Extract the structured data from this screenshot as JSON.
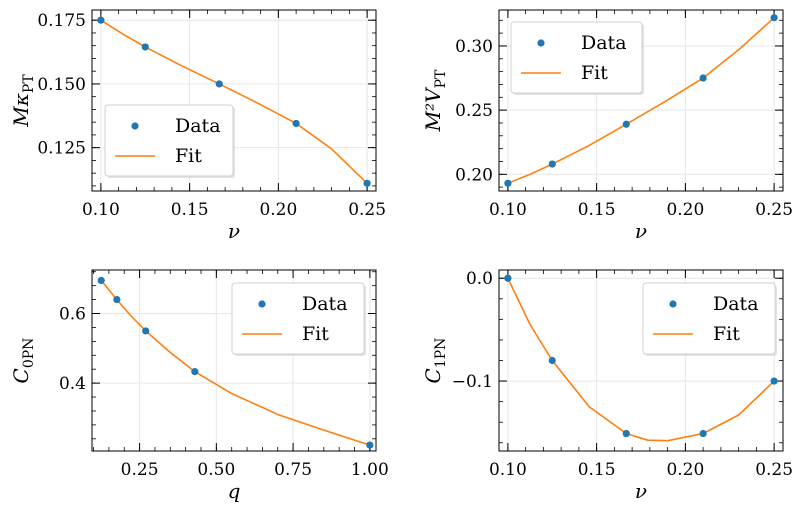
{
  "colors": {
    "data": "#1f77b4",
    "fit": "#ff7f0e",
    "grid": "#e6e6e6",
    "frame": "#000000"
  },
  "chart_data": [
    {
      "type": "scatter",
      "xlabel": "ν",
      "ylabel_main": "Mκ",
      "ylabel_sub": "PT",
      "xlim": [
        0.095,
        0.255
      ],
      "ylim": [
        0.108,
        0.179
      ],
      "xticks": [
        0.1,
        0.15,
        0.2,
        0.25
      ],
      "xtick_labels": [
        "0.10",
        "0.15",
        "0.20",
        "0.25"
      ],
      "yticks": [
        0.125,
        0.15,
        0.175
      ],
      "ytick_labels": [
        "0.125",
        "0.150",
        "0.175"
      ],
      "grid": true,
      "legend": {
        "position": "lower-left",
        "entries": [
          "Data",
          "Fit"
        ]
      },
      "series": [
        {
          "name": "Data",
          "kind": "scatter",
          "x": [
            0.1,
            0.125,
            0.1667,
            0.21,
            0.25
          ],
          "y": [
            0.175,
            0.1645,
            0.15,
            0.1345,
            0.111
          ]
        },
        {
          "name": "Fit",
          "kind": "line",
          "x": [
            0.1,
            0.1125,
            0.125,
            0.1458,
            0.1667,
            0.1883,
            0.21,
            0.23,
            0.25
          ],
          "y": [
            0.175,
            0.1695,
            0.1645,
            0.157,
            0.15,
            0.1425,
            0.1345,
            0.1245,
            0.111
          ]
        }
      ]
    },
    {
      "type": "scatter",
      "xlabel": "ν",
      "ylabel_main": "M²V",
      "ylabel_sub": "PT",
      "xlim": [
        0.095,
        0.255
      ],
      "ylim": [
        0.187,
        0.328
      ],
      "xticks": [
        0.1,
        0.15,
        0.2,
        0.25
      ],
      "xtick_labels": [
        "0.10",
        "0.15",
        "0.20",
        "0.25"
      ],
      "yticks": [
        0.2,
        0.25,
        0.3
      ],
      "ytick_labels": [
        "0.20",
        "0.25",
        "0.30"
      ],
      "grid": true,
      "legend": {
        "position": "top-left",
        "entries": [
          "Data",
          "Fit"
        ]
      },
      "series": [
        {
          "name": "Data",
          "kind": "scatter",
          "x": [
            0.1,
            0.125,
            0.1667,
            0.21,
            0.25
          ],
          "y": [
            0.193,
            0.208,
            0.239,
            0.275,
            0.322
          ]
        },
        {
          "name": "Fit",
          "kind": "line",
          "x": [
            0.1,
            0.1125,
            0.125,
            0.1458,
            0.1667,
            0.1883,
            0.21,
            0.23,
            0.25
          ],
          "y": [
            0.193,
            0.2,
            0.208,
            0.2225,
            0.239,
            0.2565,
            0.275,
            0.297,
            0.322
          ]
        }
      ]
    },
    {
      "type": "scatter",
      "xlabel": "q",
      "ylabel_main": "C",
      "ylabel_sub": "0PN",
      "xlim": [
        0.095,
        1.02
      ],
      "ylim": [
        0.205,
        0.725
      ],
      "xticks": [
        0.25,
        0.5,
        0.75,
        1.0
      ],
      "xtick_labels": [
        "0.25",
        "0.50",
        "0.75",
        "1.00"
      ],
      "yticks": [
        0.4,
        0.6
      ],
      "ytick_labels": [
        "0.4",
        "0.6"
      ],
      "grid": true,
      "legend": {
        "position": "top-right",
        "entries": [
          "Data",
          "Fit"
        ]
      },
      "series": [
        {
          "name": "Data",
          "kind": "scatter",
          "x": [
            0.125,
            0.176,
            0.27,
            0.43,
            1.0
          ],
          "y": [
            0.695,
            0.64,
            0.55,
            0.433,
            0.222
          ]
        },
        {
          "name": "Fit",
          "kind": "line",
          "x": [
            0.125,
            0.15,
            0.176,
            0.22,
            0.27,
            0.35,
            0.43,
            0.55,
            0.7,
            0.85,
            1.0
          ],
          "y": [
            0.695,
            0.668,
            0.64,
            0.595,
            0.55,
            0.488,
            0.433,
            0.37,
            0.31,
            0.265,
            0.222
          ]
        }
      ]
    },
    {
      "type": "scatter",
      "xlabel": "ν",
      "ylabel_main": "C",
      "ylabel_sub": "1PN",
      "xlim": [
        0.095,
        0.255
      ],
      "ylim": [
        -0.168,
        0.008
      ],
      "xticks": [
        0.1,
        0.15,
        0.2,
        0.25
      ],
      "xtick_labels": [
        "0.10",
        "0.15",
        "0.20",
        "0.25"
      ],
      "yticks": [
        -0.1,
        0.0
      ],
      "ytick_labels": [
        "−0.1",
        "0.0"
      ],
      "grid": true,
      "legend": {
        "position": "top-right",
        "entries": [
          "Data",
          "Fit"
        ]
      },
      "series": [
        {
          "name": "Data",
          "kind": "scatter",
          "x": [
            0.1,
            0.125,
            0.1667,
            0.21,
            0.25
          ],
          "y": [
            0.0,
            -0.08,
            -0.151,
            -0.151,
            -0.1
          ]
        },
        {
          "name": "Fit",
          "kind": "line",
          "x": [
            0.1,
            0.1125,
            0.125,
            0.1458,
            0.1667,
            0.1788,
            0.19,
            0.21,
            0.23,
            0.25
          ],
          "y": [
            0.0,
            -0.045,
            -0.08,
            -0.125,
            -0.151,
            -0.1575,
            -0.158,
            -0.151,
            -0.133,
            -0.1
          ]
        }
      ]
    }
  ]
}
